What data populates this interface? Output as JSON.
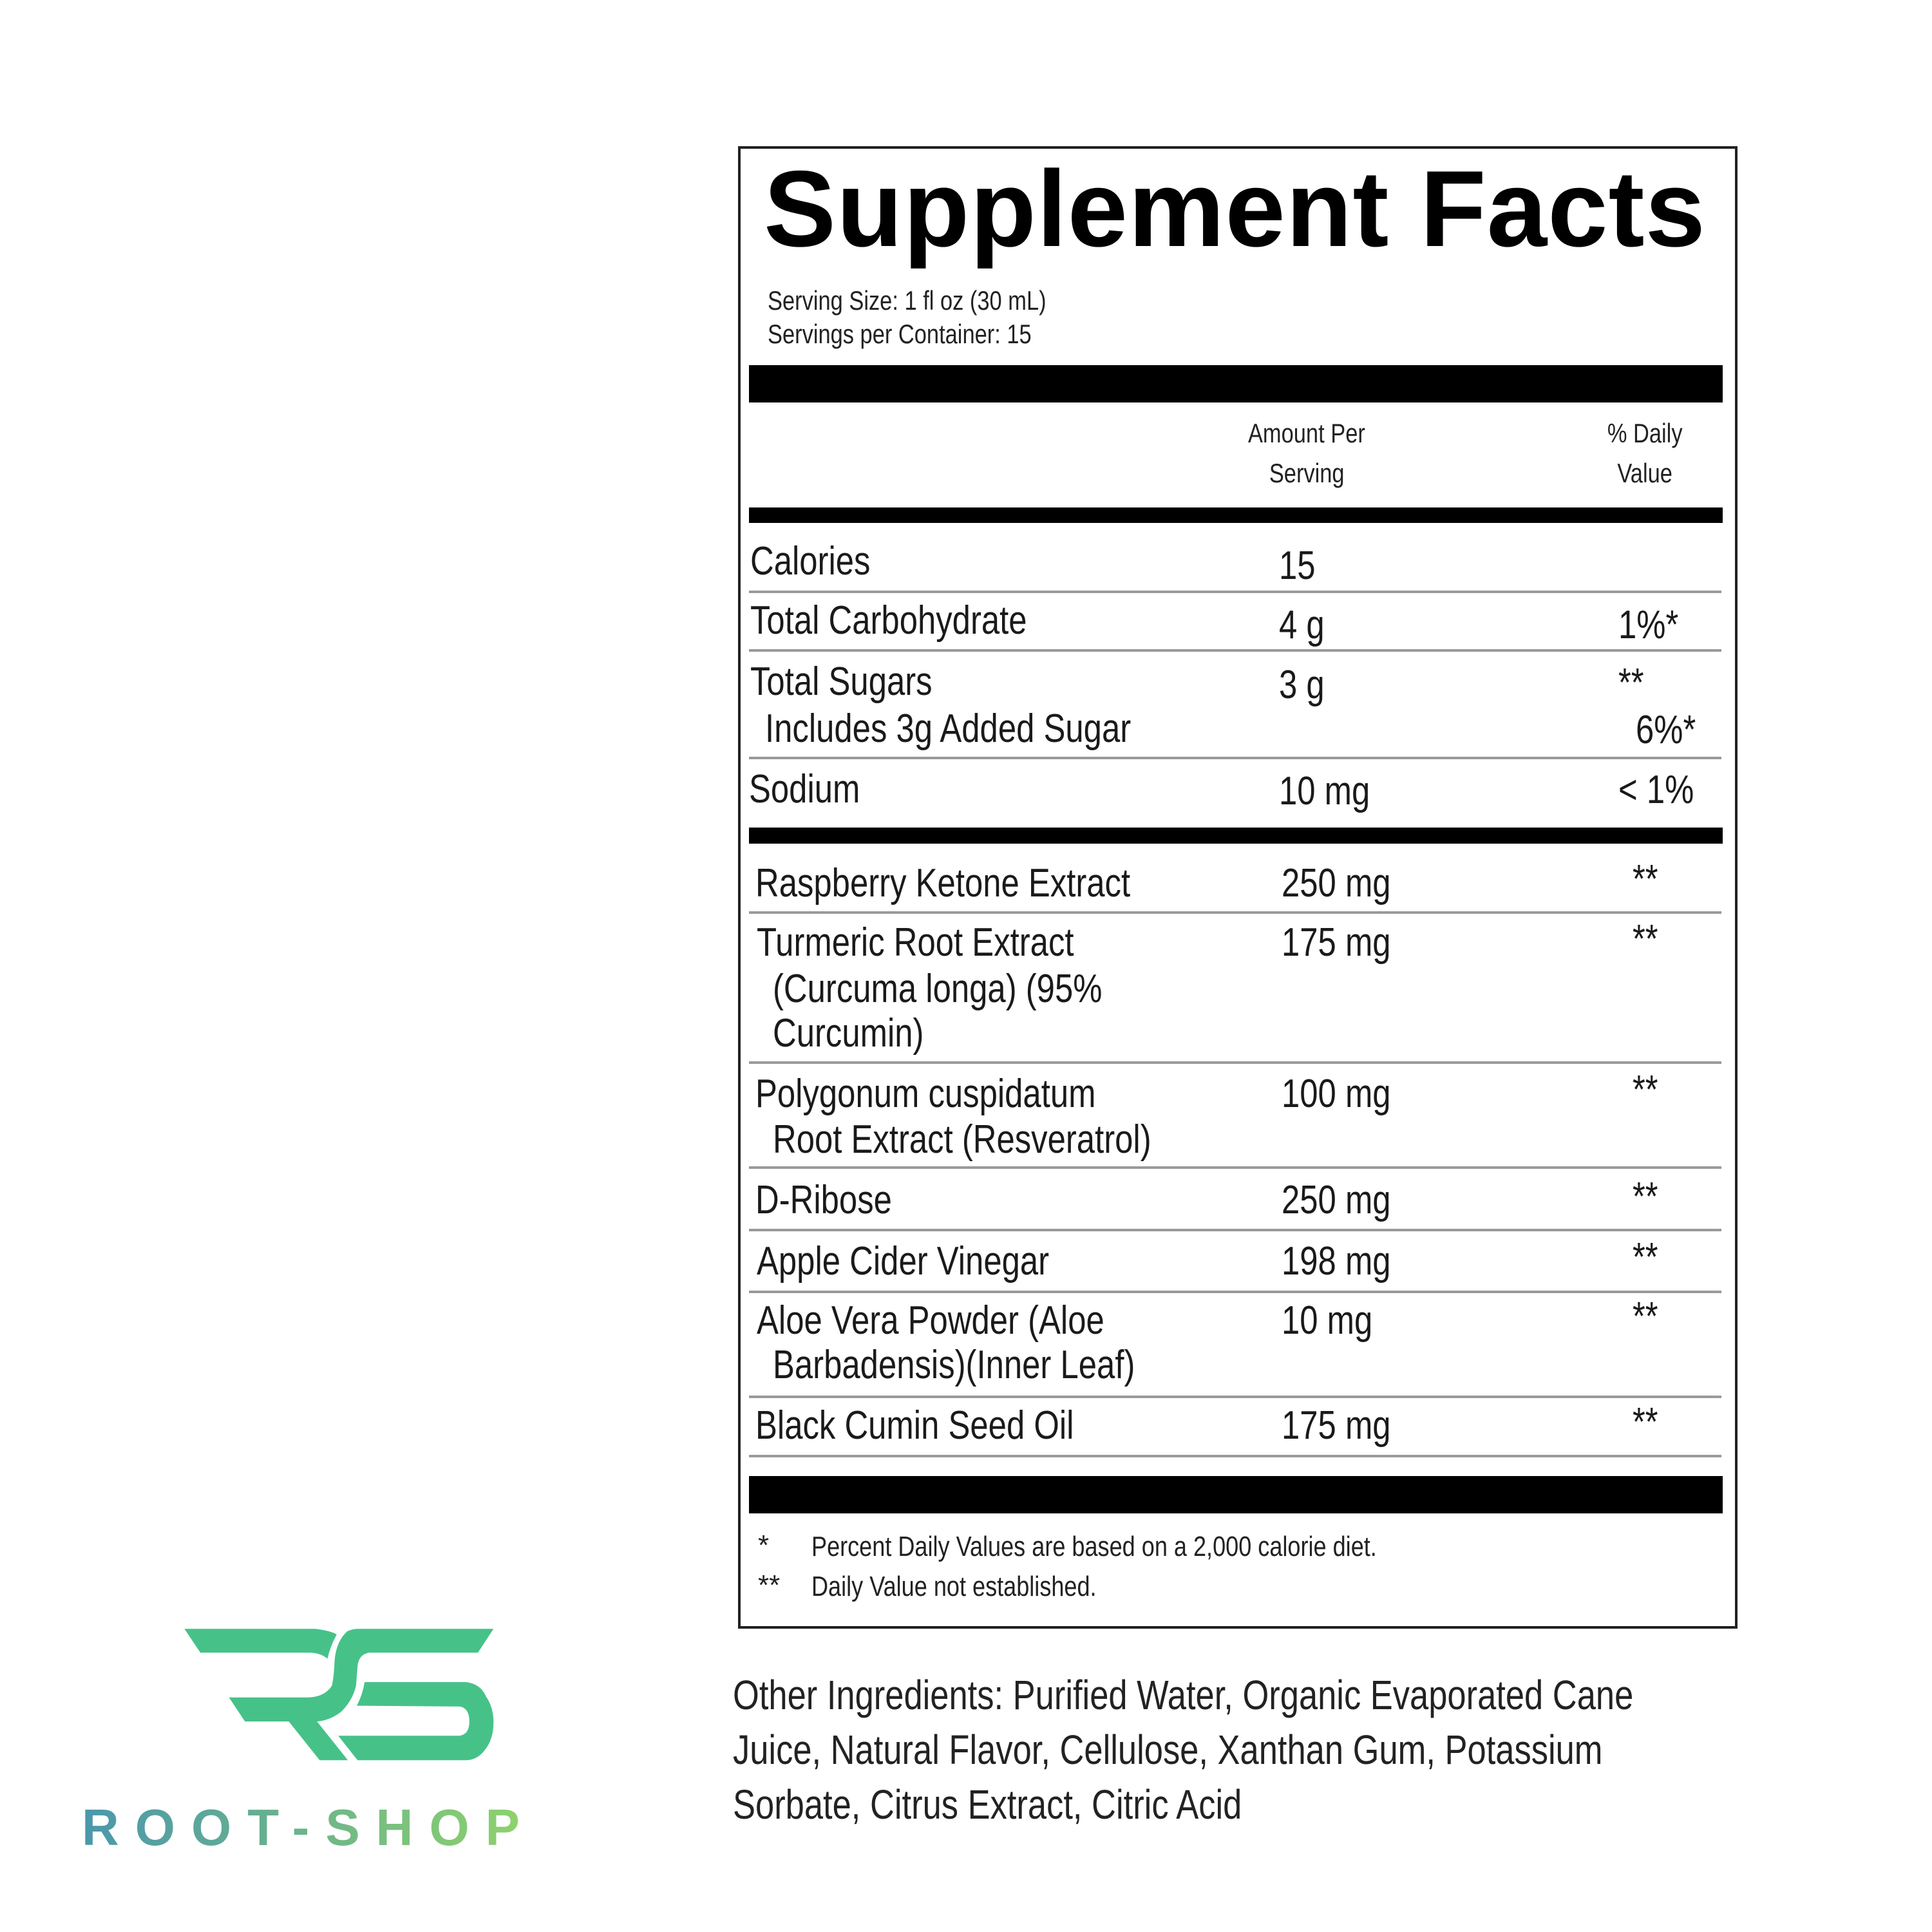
{
  "label": {
    "title": "Supplement Facts",
    "serving_size": "Serving Size: 1 fl oz (30 mL)",
    "servings_per_container": "Servings per Container: 15",
    "col_amount": [
      "Amount Per",
      "Serving"
    ],
    "col_dv": [
      "% Daily",
      "Value"
    ],
    "nutrients": [
      {
        "name": "Calories",
        "amount": "15",
        "dv": ""
      },
      {
        "name": "Total Carbohydrate",
        "amount": "4 g",
        "dv": "1%*"
      },
      {
        "name": "Total Sugars",
        "amount": "3 g",
        "dv": "**",
        "sub": "Includes 3g Added Sugar",
        "sub_dv": "6%*"
      },
      {
        "name": "Sodium",
        "amount": "10 mg",
        "dv": "< 1%"
      }
    ],
    "ingredients": [
      {
        "lines": [
          "Raspberry Ketone Extract"
        ],
        "amount": "250 mg",
        "dv": "**"
      },
      {
        "lines": [
          "Turmeric Root Extract",
          "(Curcuma longa) (95%",
          "Curcumin)"
        ],
        "amount": "175 mg",
        "dv": "**"
      },
      {
        "lines": [
          "Polygonum cuspidatum",
          "Root Extract (Resveratrol)"
        ],
        "amount": "100 mg",
        "dv": "**"
      },
      {
        "lines": [
          "D-Ribose"
        ],
        "amount": "250 mg",
        "dv": "**"
      },
      {
        "lines": [
          "Apple Cider Vinegar"
        ],
        "amount": "198 mg",
        "dv": "**"
      },
      {
        "lines": [
          "Aloe Vera Powder (Aloe",
          "Barbadensis)(Inner Leaf)"
        ],
        "amount": "10 mg",
        "dv": "**"
      },
      {
        "lines": [
          "Black Cumin Seed Oil"
        ],
        "amount": "175 mg",
        "dv": "**"
      }
    ],
    "footnotes": [
      {
        "mark": "*",
        "text": "Percent Daily Values are based on a 2,000 calorie diet."
      },
      {
        "mark": "**",
        "text": "Daily Value not established."
      }
    ]
  },
  "other_ingredients": [
    "Other Ingredients: Purified Water, Organic Evaporated Cane",
    "Juice, Natural Flavor, Cellulose, Xanthan Gum, Potassium",
    "Sorbate, Citrus Extract, Citric Acid"
  ],
  "brand": {
    "name": "ROOT-SHOP",
    "monogram": "RS",
    "color_primary": "#46c289",
    "gradient": [
      "#4a97ac",
      "#90d46a"
    ]
  }
}
